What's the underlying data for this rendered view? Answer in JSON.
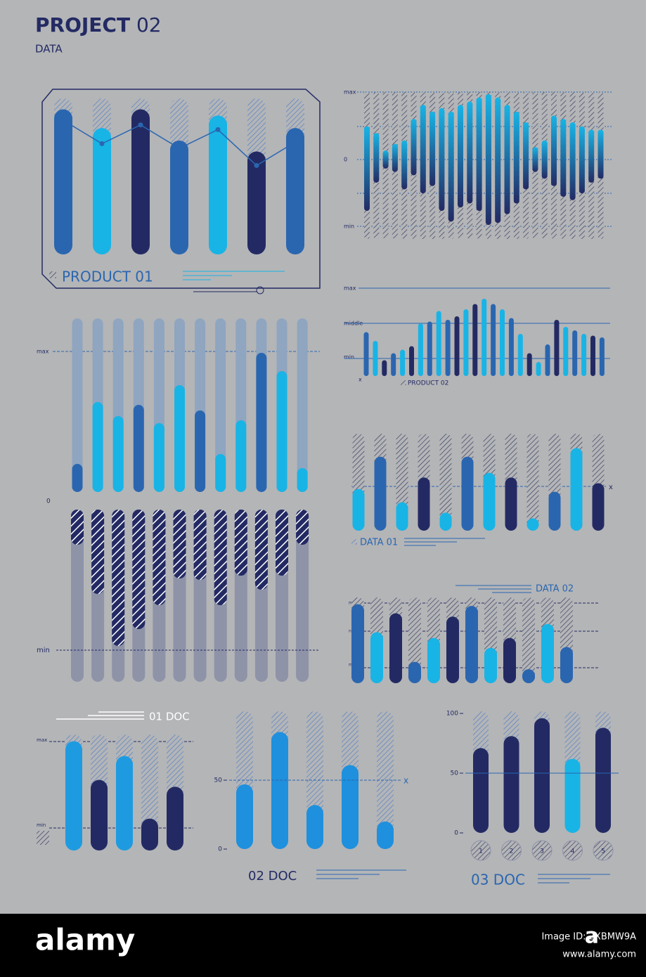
{
  "header": {
    "title_bold": "PROJECT",
    "title_regular": "02",
    "subtitle": "DATA"
  },
  "chart_data": [
    {
      "type": "bar",
      "title": "PRODUCT 01",
      "values": [
        93,
        81,
        93,
        73,
        89,
        66,
        81
      ],
      "colors": [
        "#2a66b0",
        "#18b4e6",
        "#232a63",
        "#2a66b0",
        "#18b4e6",
        "#232a63",
        "#2a66b0"
      ],
      "line_values": [
        86,
        71,
        83,
        68,
        80,
        57,
        72
      ],
      "line_color": "#2a66b0",
      "ylim": [
        0,
        100
      ]
    },
    {
      "type": "range",
      "axis_labels": [
        "max",
        "0",
        "min"
      ],
      "high": [
        49,
        39,
        13,
        23,
        28,
        60,
        81,
        71,
        76,
        71,
        81,
        86,
        92,
        97,
        92,
        81,
        71,
        55,
        18,
        28,
        65,
        60,
        55,
        49,
        44,
        44
      ],
      "low": [
        -77,
        -35,
        -14,
        -19,
        -45,
        -24,
        -51,
        -40,
        -77,
        -93,
        -72,
        -66,
        -77,
        -98,
        -95,
        -82,
        -66,
        -45,
        -19,
        -29,
        -40,
        -56,
        -61,
        -51,
        -35,
        -29
      ],
      "color_top": "#18b4e6",
      "color_bottom": "#232a63",
      "ylim": [
        -100,
        100
      ]
    },
    {
      "type": "bar",
      "title": "PRODUCT 02",
      "axis_labels": [
        "max",
        "middle",
        "min"
      ],
      "marker": "x",
      "values": [
        50,
        40,
        18,
        26,
        30,
        34,
        60,
        62,
        74,
        64,
        68,
        76,
        82,
        88,
        82,
        76,
        66,
        48,
        26,
        16,
        36,
        64,
        56,
        52,
        48,
        46,
        44
      ],
      "colors": [
        "#2a66b0",
        "#18b4e6",
        "#232a63",
        "#2a66b0",
        "#18b4e6",
        "#232a63",
        "#18b4e6",
        "#2a66b0",
        "#18b4e6",
        "#2a66b0",
        "#232a63",
        "#18b4e6",
        "#232a63",
        "#18b4e6",
        "#2a66b0",
        "#18b4e6",
        "#2a66b0",
        "#18b4e6",
        "#232a63",
        "#18b4e6",
        "#2a66b0",
        "#232a63",
        "#18b4e6",
        "#2a66b0",
        "#18b4e6",
        "#232a63",
        "#2a66b0"
      ],
      "ylim": [
        0,
        100
      ]
    },
    {
      "type": "bar",
      "axis_labels": [
        "max",
        "0"
      ],
      "values": [
        20,
        64,
        54,
        62,
        49,
        76,
        58,
        27,
        51,
        99,
        86,
        17
      ],
      "colors": [
        "#2a66b0",
        "#18b4e6",
        "#18b4e6",
        "#2a66b0",
        "#18b4e6",
        "#18b4e6",
        "#2a66b0",
        "#18b4e6",
        "#18b4e6",
        "#2a66b0",
        "#18b4e6",
        "#18b4e6"
      ],
      "track_color": "#8fa5c0",
      "ylim": [
        0,
        100
      ]
    },
    {
      "type": "hanging",
      "axis_labels": [
        "min"
      ],
      "values": [
        25,
        60,
        97,
        85,
        68,
        49,
        50,
        68,
        47,
        57,
        47,
        25
      ],
      "color": "#232a63",
      "track_color": "#8e93a8",
      "ylim": [
        0,
        100
      ]
    },
    {
      "type": "bar",
      "title": "DATA 01",
      "marker": "x",
      "values": [
        44,
        78,
        30,
        56,
        19,
        78,
        61,
        56,
        13,
        41,
        87,
        50
      ],
      "colors": [
        "#18b4e6",
        "#2a66b0",
        "#18b4e6",
        "#232a63",
        "#18b4e6",
        "#2a66b0",
        "#18b4e6",
        "#232a63",
        "#18b4e6",
        "#2a66b0",
        "#18b4e6",
        "#232a63"
      ],
      "ylim": [
        0,
        100
      ]
    },
    {
      "type": "bar",
      "title": "DATA 02",
      "axis_labels": [
        "max",
        "normal",
        "min"
      ],
      "values": [
        96,
        62,
        85,
        26,
        55,
        81,
        94,
        43,
        55,
        17,
        72,
        44
      ],
      "colors": [
        "#2a66b0",
        "#18b4e6",
        "#232a63",
        "#2a66b0",
        "#18b4e6",
        "#232a63",
        "#2a66b0",
        "#18b4e6",
        "#232a63",
        "#2a66b0",
        "#18b4e6",
        "#2a66b0"
      ],
      "ylim": [
        0,
        100
      ]
    },
    {
      "type": "bar",
      "title": "01 DOC",
      "axis_labels": [
        "max",
        "min"
      ],
      "values": [
        96,
        62,
        83,
        28,
        56
      ],
      "colors": [
        "#1e9be0",
        "#232a63",
        "#1e9be0",
        "#232a63",
        "#232a63"
      ],
      "ylim": [
        0,
        100
      ]
    },
    {
      "type": "bar",
      "title": "02 DOC",
      "marker": "x",
      "values": [
        47,
        85,
        32,
        61,
        20
      ],
      "colors": [
        "#1e90dd",
        "#1e90dd",
        "#1e90dd",
        "#1e90dd",
        "#1e90dd"
      ],
      "ylim": [
        0,
        100
      ],
      "yticks": [
        0,
        50
      ]
    },
    {
      "type": "bar",
      "title": "03 DOC",
      "categories": [
        "1",
        "2",
        "3",
        "4",
        "5"
      ],
      "values": [
        71,
        81,
        96,
        62,
        88
      ],
      "colors": [
        "#232a63",
        "#232a63",
        "#232a63",
        "#18b4e6",
        "#232a63"
      ],
      "ylim": [
        0,
        100
      ],
      "yticks": [
        0,
        50,
        100
      ]
    }
  ],
  "footer": {
    "brand": "alamy",
    "logo": "a",
    "image_id": "Image ID: 2XBMW9A",
    "url": "www.alamy.com"
  }
}
